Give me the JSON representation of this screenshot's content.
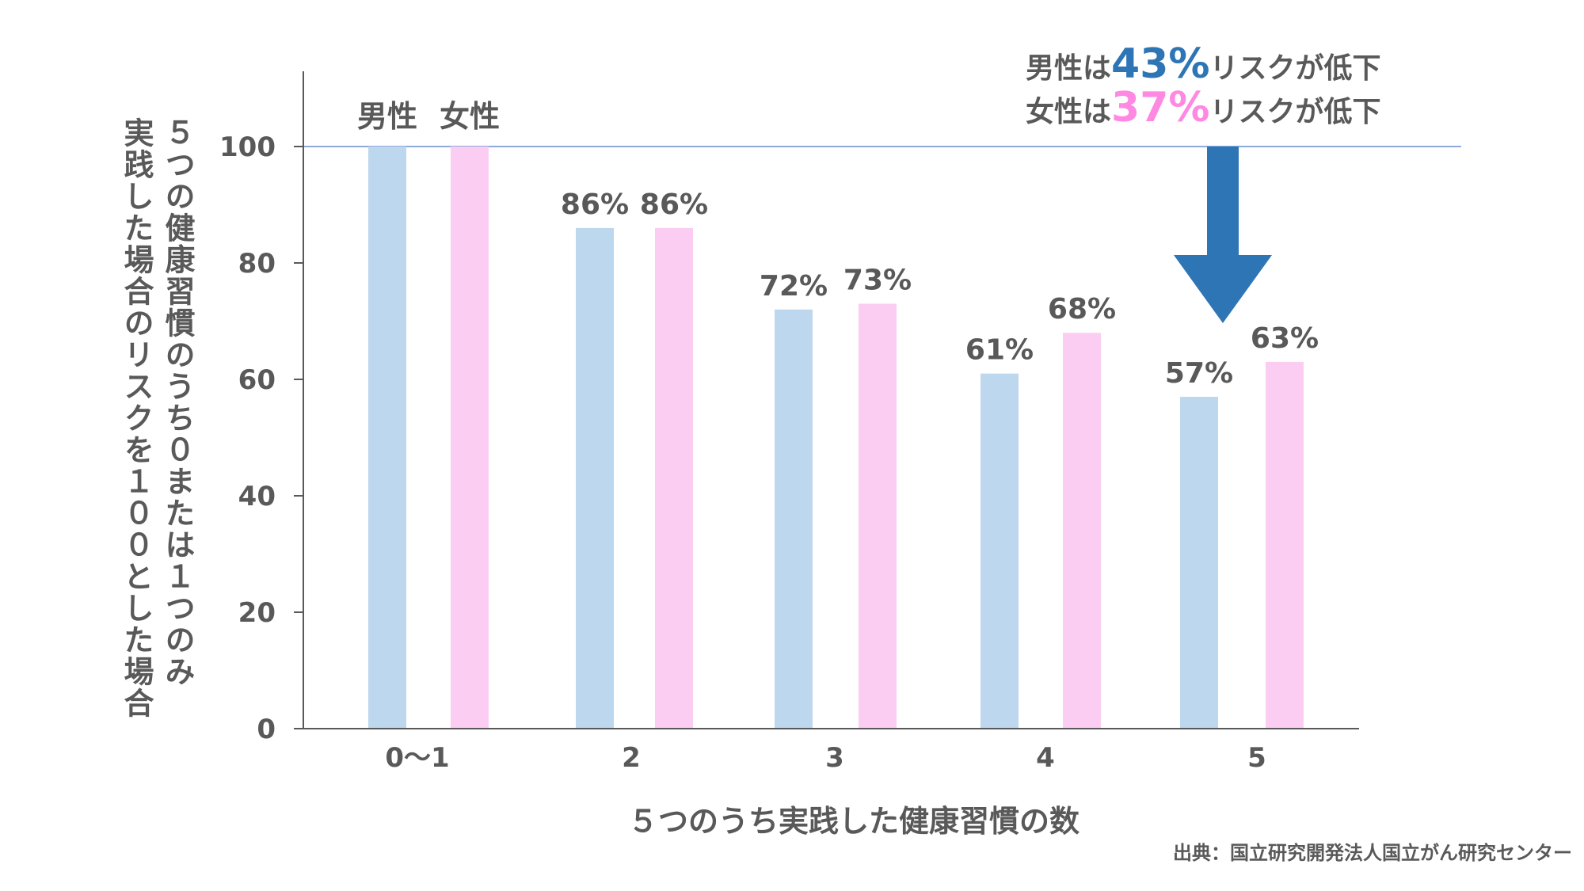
{
  "chart_data": {
    "type": "bar",
    "categories": [
      "0〜1",
      "2",
      "3",
      "4",
      "5"
    ],
    "series": [
      {
        "name": "男性",
        "values": [
          100,
          86,
          72,
          61,
          57
        ],
        "labels": [
          "",
          "86%",
          "72%",
          "61%",
          "57%"
        ],
        "color": "#BDD7EE"
      },
      {
        "name": "女性",
        "values": [
          100,
          86,
          73,
          68,
          63
        ],
        "labels": [
          "",
          "86%",
          "73%",
          "68%",
          "63%"
        ],
        "color": "#FBCDF3"
      }
    ],
    "ylim": [
      0,
      110
    ],
    "yticks": [
      0,
      20,
      40,
      60,
      80,
      100
    ],
    "xlabel": "５つのうち実践した健康習慣の数",
    "ylabel_lines": [
      "５つの健康習慣のうち０または１つのみ",
      "実践した場合のリスクを１００とした場合"
    ],
    "reference_line": 100,
    "reference_line_color": "#8FAADC",
    "annotation": {
      "lines": [
        {
          "prefix": "男性は",
          "value": "43%",
          "suffix": "リスクが低下",
          "value_color": "#2E75B6"
        },
        {
          "prefix": "女性は",
          "value": "37%",
          "suffix": "リスクが低下",
          "value_color": "#FF88E3"
        }
      ],
      "arrow_color": "#2E75B6"
    },
    "source": "出典：国立研究開発法人国立がん研究センター",
    "grid": false
  }
}
